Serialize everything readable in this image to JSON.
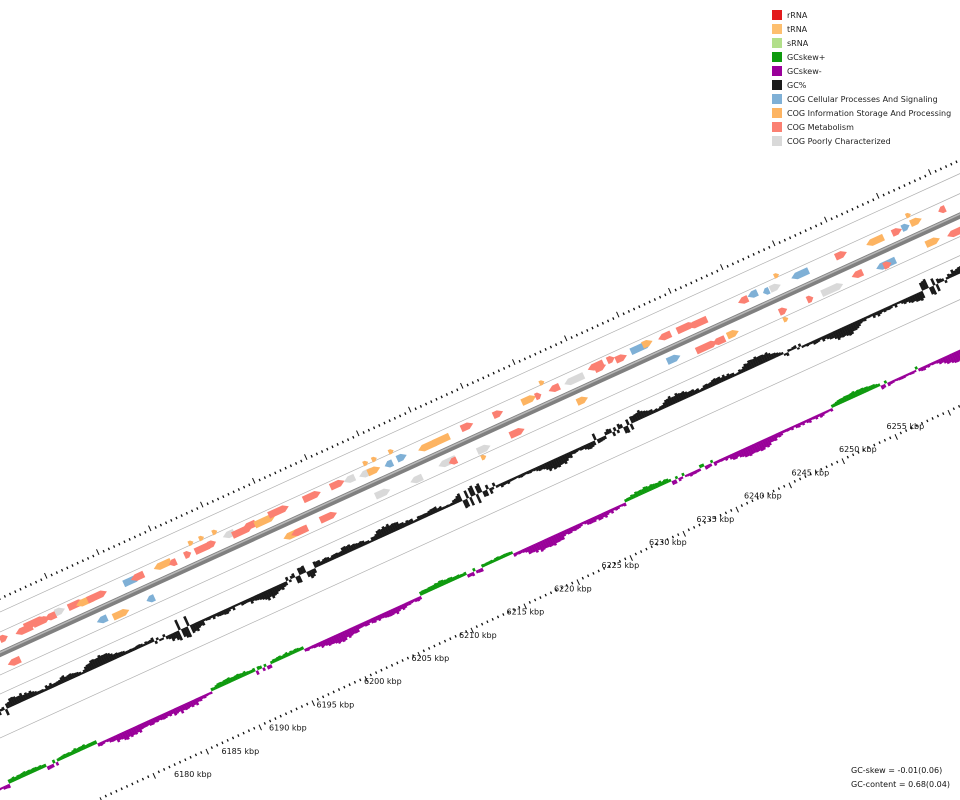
{
  "legend": {
    "items": [
      {
        "label": "rRNA",
        "color": "#e31a1c"
      },
      {
        "label": "tRNA",
        "color": "#fdbf6f"
      },
      {
        "label": "sRNA",
        "color": "#b2df8a"
      },
      {
        "label": "GCskew+",
        "color": "#0e9a0e"
      },
      {
        "label": "GCskew-",
        "color": "#990099"
      },
      {
        "label": "GC%",
        "color": "#1a1a1a"
      },
      {
        "label": "COG Cellular Processes And Signaling",
        "color": "#7fb0d6"
      },
      {
        "label": "COG Information Storage And Processing",
        "color": "#fdb462"
      },
      {
        "label": "COG Metabolism",
        "color": "#fb8072"
      },
      {
        "label": "COG Poorly Characterized",
        "color": "#d9d9d9"
      }
    ]
  },
  "scale": {
    "unit": "kbp",
    "labels": [
      "6180 kbp",
      "6185 kbp",
      "6190 kbp",
      "6195 kbp",
      "6200 kbp",
      "6205 kbp",
      "6210 kbp",
      "6215 kbp",
      "6220 kbp",
      "6225 kbp",
      "6230 kbp",
      "6235 kbp",
      "6240 kbp",
      "6245 kbp",
      "6250 kbp",
      "6255 kbp"
    ]
  },
  "stats": {
    "gc_skew": "GC-skew = -0.01(0.06)",
    "gc_content": "GC-content = 0.68(0.04)"
  },
  "colors": {
    "backbone": "#808080",
    "grid_line": "#b0b0b0",
    "tick": "#111111",
    "gc": "#1a1a1a",
    "skew_pos": "#0e9a0e",
    "skew_neg": "#990099",
    "cog_cellular": "#7fb0d6",
    "cog_info": "#fdb462",
    "cog_metabolism": "#fb8072",
    "cog_poor": "#d9d9d9"
  }
}
